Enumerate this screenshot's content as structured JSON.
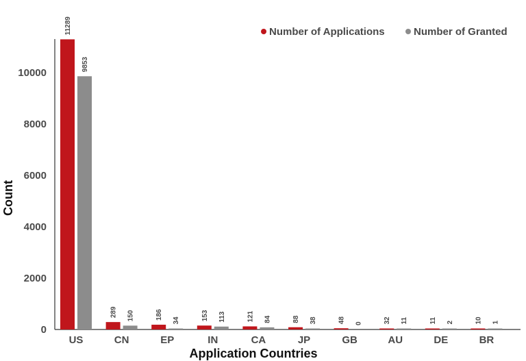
{
  "chart_data": {
    "type": "bar",
    "title": "",
    "xlabel": "Application Countries",
    "ylabel": "Count",
    "categories": [
      "US",
      "CN",
      "EP",
      "IN",
      "CA",
      "JP",
      "GB",
      "AU",
      "DE",
      "BR"
    ],
    "series": [
      {
        "name": "Number of Applications",
        "color": "#c0161c",
        "values": [
          11289,
          289,
          186,
          153,
          121,
          88,
          48,
          32,
          11,
          10
        ]
      },
      {
        "name": "Number of Granted",
        "color": "#8c8c8c",
        "values": [
          9853,
          150,
          34,
          113,
          84,
          38,
          0,
          11,
          2,
          1
        ]
      }
    ],
    "ylim": [
      0,
      11300
    ],
    "yticks": [
      0,
      2000,
      4000,
      6000,
      8000,
      10000
    ],
    "grid": false,
    "legend_position": "top-right"
  }
}
